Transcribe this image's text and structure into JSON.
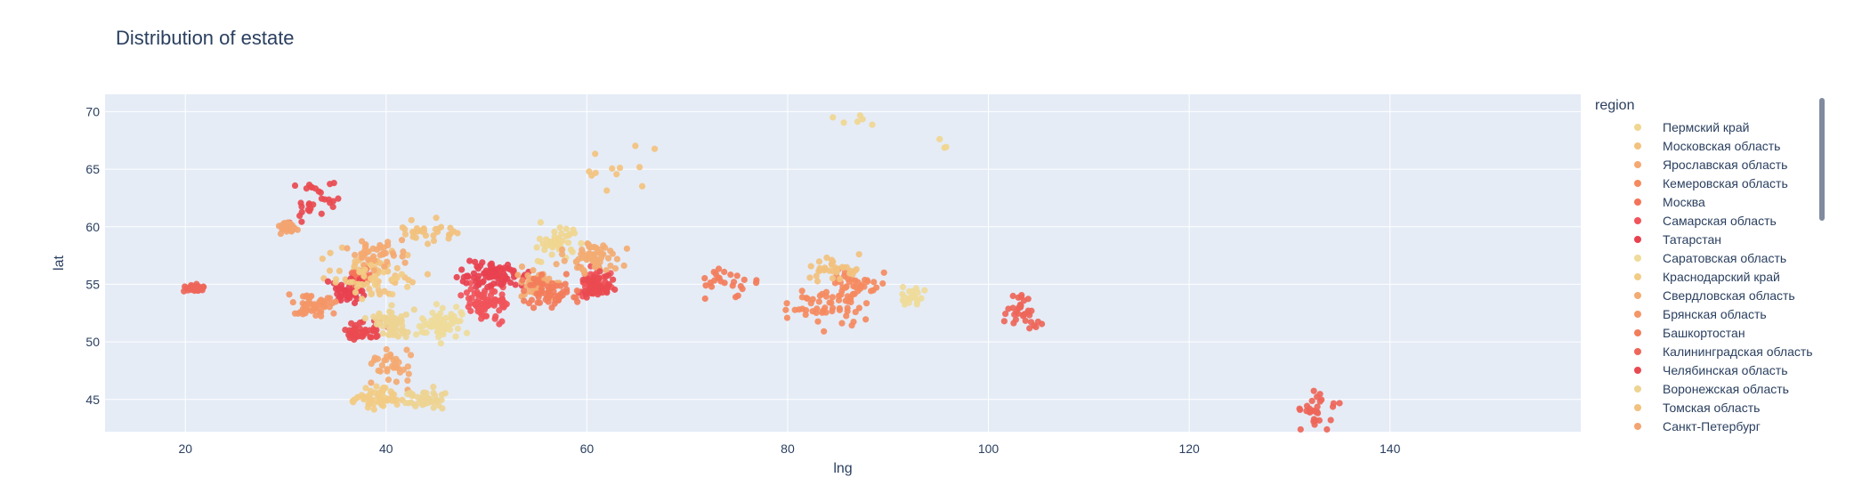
{
  "chart_data": {
    "type": "scatter",
    "title": "Distribution of estate",
    "xlabel": "lng",
    "ylabel": "lat",
    "xlim": [
      12,
      159
    ],
    "ylim": [
      42.2,
      71.5
    ],
    "xticks": [
      20,
      40,
      60,
      80,
      100,
      120,
      140
    ],
    "yticks": [
      45,
      50,
      55,
      60,
      65,
      70
    ],
    "grid": true,
    "legend_title": "region",
    "legend_position": "right",
    "series": [
      {
        "name": "Пермский край",
        "color": "#f0d68f",
        "clusters": [
          [
            57.0,
            58.5,
            2.5,
            1.2,
            40
          ],
          [
            86.5,
            69.3,
            1.5,
            0.3,
            6
          ],
          [
            95.5,
            67.0,
            1.0,
            0.4,
            3
          ]
        ]
      },
      {
        "name": "Московская область",
        "color": "#f3c27e",
        "clusters": [
          [
            38.5,
            56.0,
            3.0,
            1.3,
            60
          ],
          [
            62.0,
            65.5,
            3.0,
            1.4,
            12
          ]
        ]
      },
      {
        "name": "Ярославская область",
        "color": "#f4a971",
        "clusters": [
          [
            39.0,
            57.8,
            1.8,
            0.8,
            40
          ],
          [
            40.5,
            48.0,
            1.6,
            1.2,
            35
          ]
        ]
      },
      {
        "name": "Кемеровская область",
        "color": "#f58a5f",
        "clusters": [
          [
            86.5,
            54.5,
            1.8,
            1.5,
            50
          ],
          [
            83.5,
            53.0,
            2.5,
            1.4,
            40
          ]
        ]
      },
      {
        "name": "Москва",
        "color": "#f47459",
        "clusters": [
          [
            37.6,
            55.7,
            0.6,
            0.4,
            40
          ]
        ]
      },
      {
        "name": "Самарская область",
        "color": "#f1545a",
        "clusters": [
          [
            50.0,
            53.3,
            1.5,
            1.0,
            80
          ],
          [
            60.5,
            55.0,
            1.3,
            1.0,
            40
          ]
        ]
      },
      {
        "name": "Татарстан",
        "color": "#e8414f",
        "clusters": [
          [
            50.5,
            55.8,
            2.5,
            0.8,
            80
          ],
          [
            36.5,
            54.3,
            1.3,
            0.8,
            40
          ]
        ]
      },
      {
        "name": "Саратовская область",
        "color": "#efdb9a",
        "clusters": [
          [
            45.5,
            51.5,
            1.5,
            1.0,
            60
          ],
          [
            92.5,
            54.0,
            0.8,
            0.7,
            25
          ]
        ]
      },
      {
        "name": "Краснодарский край",
        "color": "#f2cc86",
        "clusters": [
          [
            39.0,
            45.2,
            1.5,
            0.6,
            60
          ],
          [
            38.5,
            55.5,
            2.5,
            1.0,
            30
          ]
        ]
      },
      {
        "name": "Свердловская область",
        "color": "#f3ab72",
        "clusters": [
          [
            60.5,
            57.3,
            2.0,
            1.0,
            60
          ],
          [
            55.0,
            55.0,
            1.5,
            1.0,
            40
          ]
        ]
      },
      {
        "name": "Брянская область",
        "color": "#f49667",
        "clusters": [
          [
            33.0,
            53.2,
            1.5,
            0.7,
            50
          ]
        ]
      },
      {
        "name": "Башкортостан",
        "color": "#f37d5b",
        "clusters": [
          [
            56.5,
            54.3,
            2.0,
            1.0,
            60
          ],
          [
            73.5,
            55.0,
            2.0,
            0.8,
            25
          ]
        ]
      },
      {
        "name": "Калининградская область",
        "color": "#ee6659",
        "clusters": [
          [
            21.0,
            54.7,
            0.7,
            0.2,
            40
          ],
          [
            103.5,
            52.5,
            1.2,
            1.0,
            35
          ],
          [
            132.5,
            43.8,
            1.5,
            1.3,
            30
          ]
        ]
      },
      {
        "name": "Челябинская область",
        "color": "#e94a50",
        "clusters": [
          [
            61.0,
            55.2,
            1.0,
            0.8,
            40
          ],
          [
            37.5,
            51.2,
            1.5,
            0.7,
            40
          ],
          [
            33.5,
            62.0,
            2.0,
            1.5,
            30
          ]
        ]
      },
      {
        "name": "Воронежская область",
        "color": "#eed493",
        "clusters": [
          [
            40.5,
            51.5,
            1.5,
            1.0,
            60
          ],
          [
            43.5,
            45.0,
            1.5,
            0.6,
            40
          ]
        ]
      },
      {
        "name": "Томская область",
        "color": "#f2c17e",
        "clusters": [
          [
            84.5,
            56.5,
            1.5,
            0.8,
            35
          ],
          [
            44.0,
            59.5,
            2.5,
            0.8,
            30
          ]
        ]
      },
      {
        "name": "Санкт-Петербург",
        "color": "#f3a470",
        "clusters": [
          [
            30.3,
            59.9,
            0.6,
            0.3,
            40
          ]
        ]
      }
    ]
  }
}
